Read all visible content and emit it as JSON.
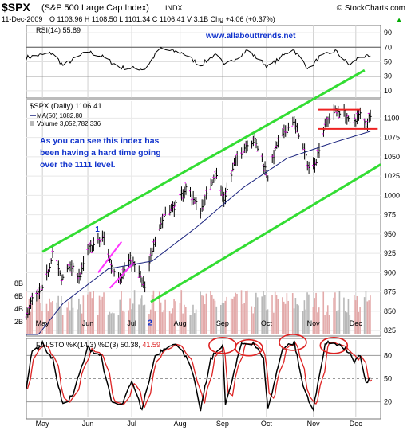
{
  "header": {
    "symbol": "$SPX",
    "name": "(S&P 500 Large Cap Index)",
    "exchange": "INDX",
    "brand": "© StockCharts.com",
    "date": "11-Dec-2009",
    "quote_line": "O 1103.96  H 1108.50  L 1101.34  C 1106.41  V 3.1B  Chg +4.06 (+0.37%)",
    "chg_arrow": "▲"
  },
  "rsi_panel": {
    "legend": "RSI(14) 55.89",
    "watermark": "www.allabouttrends.net",
    "ticks": [
      90,
      70,
      50,
      30,
      10
    ],
    "overbought": 70,
    "oversold": 30,
    "ylim": [
      0,
      100
    ]
  },
  "price_panel": {
    "legend_symbol": "$SPX (Daily) 1106.41",
    "legend_ma": "MA(50) 1082.80",
    "legend_volume": "Volume 3,052,782,336",
    "annotation": "As you can see this index has been having a hard time going over the 1111 level.",
    "wave_label_1": "1",
    "wave_label_2": "2",
    "price_ticks": [
      1100,
      1075,
      1050,
      1025,
      1000,
      975,
      950,
      925,
      900,
      875,
      850,
      825
    ],
    "volume_ticks": [
      "8B",
      "6B",
      "4B",
      "2B"
    ],
    "ylim": [
      820,
      1122
    ],
    "volume_ylim": [
      0,
      10
    ]
  },
  "sto_panel": {
    "legend_prefix": "Full STO %K(14,3) %D(3)",
    "k_value": "50.38,",
    "d_value": "41.59",
    "ticks": [
      80,
      50,
      20
    ],
    "ylim": [
      0,
      100
    ]
  },
  "colors": {
    "price_bar": "#000000",
    "ma": "#1a237e",
    "channel": "#33dd33",
    "flag": "#ff33ff",
    "resistance": "#ee2222",
    "volume_up": "#e3aaaa",
    "volume_down": "#b8b8b8",
    "sto_k": "#000000",
    "sto_d": "#dd2222",
    "circle": "#dd2222",
    "annotation": "#1133cc"
  },
  "chart_data": {
    "type": "line",
    "title": "$SPX (S&P 500 Large Cap Index)",
    "x_months": [
      "May",
      "Jun",
      "Jul",
      "Aug",
      "Sep",
      "Oct",
      "Nov",
      "Dec"
    ],
    "price_anchors": [
      [
        "2009-04-20",
        845
      ],
      [
        "2009-04-24",
        866
      ],
      [
        "2009-05-01",
        877
      ],
      [
        "2009-05-06",
        910
      ],
      [
        "2009-05-08",
        928
      ],
      [
        "2009-05-14",
        890
      ],
      [
        "2009-05-19",
        910
      ],
      [
        "2009-05-27",
        895
      ],
      [
        "2009-06-01",
        930
      ],
      [
        "2009-06-12",
        945
      ],
      [
        "2009-06-17",
        910
      ],
      [
        "2009-06-23",
        893
      ],
      [
        "2009-06-30",
        918
      ],
      [
        "2009-07-06",
        898
      ],
      [
        "2009-07-10",
        880
      ],
      [
        "2009-07-16",
        940
      ],
      [
        "2009-07-24",
        978
      ],
      [
        "2009-07-31",
        987
      ],
      [
        "2009-08-07",
        1010
      ],
      [
        "2009-08-17",
        980
      ],
      [
        "2009-08-27",
        1030
      ],
      [
        "2009-09-02",
        995
      ],
      [
        "2009-09-10",
        1045
      ],
      [
        "2009-09-18",
        1068
      ],
      [
        "2009-09-23",
        1071
      ],
      [
        "2009-10-02",
        1025
      ],
      [
        "2009-10-08",
        1065
      ],
      [
        "2009-10-19",
        1097
      ],
      [
        "2009-10-23",
        1080
      ],
      [
        "2009-10-30",
        1036
      ],
      [
        "2009-11-04",
        1046
      ],
      [
        "2009-11-10",
        1093
      ],
      [
        "2009-11-17",
        1110
      ],
      [
        "2009-11-24",
        1106
      ],
      [
        "2009-11-27",
        1091
      ],
      [
        "2009-12-04",
        1105
      ],
      [
        "2009-12-08",
        1091
      ],
      [
        "2009-12-11",
        1106
      ]
    ],
    "ma50": [
      [
        "2009-04-20",
        800
      ],
      [
        "2009-05-15",
        860
      ],
      [
        "2009-06-15",
        905
      ],
      [
        "2009-07-15",
        915
      ],
      [
        "2009-08-15",
        960
      ],
      [
        "2009-09-15",
        1010
      ],
      [
        "2009-10-15",
        1048
      ],
      [
        "2009-11-15",
        1068
      ],
      [
        "2009-12-11",
        1083
      ]
    ],
    "channel_upper": [
      [
        "2009-05-01",
        927
      ],
      [
        "2009-12-07",
        1162
      ]
    ],
    "channel_lower": [
      [
        "2009-07-14",
        862
      ],
      [
        "2009-12-17",
        1040
      ]
    ],
    "resistance_upper": [
      [
        "2009-11-05",
        1111
      ],
      [
        "2009-12-04",
        1111
      ]
    ],
    "resistance_lower": [
      [
        "2009-11-05",
        1086
      ],
      [
        "2009-12-16",
        1086
      ]
    ],
    "flag_lines": [
      [
        [
          "2009-06-08",
          900
        ],
        [
          "2009-06-24",
          940
        ]
      ],
      [
        [
          "2009-06-16",
          880
        ],
        [
          "2009-07-02",
          912
        ]
      ]
    ],
    "wave_points": [
      [
        "2009-06-06",
        953,
        "1"
      ],
      [
        "2009-07-12",
        832,
        "2"
      ]
    ],
    "sto_k_anchors": [
      [
        "2009-04-20",
        40
      ],
      [
        "2009-04-24",
        85
      ],
      [
        "2009-05-01",
        95
      ],
      [
        "2009-05-08",
        75
      ],
      [
        "2009-05-15",
        15
      ],
      [
        "2009-05-22",
        30
      ],
      [
        "2009-06-01",
        90
      ],
      [
        "2009-06-10",
        80
      ],
      [
        "2009-06-17",
        20
      ],
      [
        "2009-06-24",
        15
      ],
      [
        "2009-07-01",
        45
      ],
      [
        "2009-07-08",
        10
      ],
      [
        "2009-07-17",
        80
      ],
      [
        "2009-07-27",
        95
      ],
      [
        "2009-08-04",
        90
      ],
      [
        "2009-08-11",
        60
      ],
      [
        "2009-08-17",
        10
      ],
      [
        "2009-08-24",
        75
      ],
      [
        "2009-09-01",
        95
      ],
      [
        "2009-09-03",
        15
      ],
      [
        "2009-09-14",
        95
      ],
      [
        "2009-09-22",
        97
      ],
      [
        "2009-09-29",
        75
      ],
      [
        "2009-10-02",
        10
      ],
      [
        "2009-10-12",
        90
      ],
      [
        "2009-10-20",
        97
      ],
      [
        "2009-10-26",
        40
      ],
      [
        "2009-11-02",
        10
      ],
      [
        "2009-11-10",
        95
      ],
      [
        "2009-11-17",
        97
      ],
      [
        "2009-11-26",
        85
      ],
      [
        "2009-11-30",
        70
      ],
      [
        "2009-12-04",
        80
      ],
      [
        "2009-12-08",
        45
      ],
      [
        "2009-12-11",
        50
      ]
    ],
    "sto_circles": [
      [
        "2009-09-01",
        93
      ],
      [
        "2009-09-19",
        90
      ],
      [
        "2009-10-19",
        97
      ],
      [
        "2009-11-16",
        93
      ]
    ],
    "rsi_anchors": [
      [
        "2009-04-20",
        56
      ],
      [
        "2009-05-08",
        62
      ],
      [
        "2009-05-15",
        45
      ],
      [
        "2009-06-01",
        64
      ],
      [
        "2009-06-12",
        56
      ],
      [
        "2009-06-23",
        42
      ],
      [
        "2009-07-10",
        40
      ],
      [
        "2009-07-20",
        68
      ],
      [
        "2009-08-05",
        62
      ],
      [
        "2009-08-17",
        45
      ],
      [
        "2009-08-28",
        62
      ],
      [
        "2009-09-02",
        44
      ],
      [
        "2009-09-18",
        66
      ],
      [
        "2009-10-02",
        43
      ],
      [
        "2009-10-19",
        68
      ],
      [
        "2009-10-30",
        40
      ],
      [
        "2009-11-06",
        56
      ],
      [
        "2009-11-17",
        65
      ],
      [
        "2009-11-27",
        45
      ],
      [
        "2009-12-04",
        58
      ],
      [
        "2009-12-11",
        56
      ]
    ],
    "volume_range_billions": [
      3,
      7
    ]
  }
}
